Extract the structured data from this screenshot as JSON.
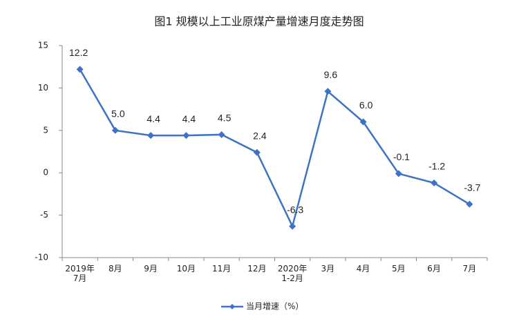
{
  "chart_data": {
    "type": "line",
    "title": "图1  规模以上工业原煤产量增速月度走势图",
    "categories": [
      "2019年\n7月",
      "8月",
      "9月",
      "10月",
      "11月",
      "12月",
      "2020年\n1-2月",
      "3月",
      "4月",
      "5月",
      "6月",
      "7月"
    ],
    "series": [
      {
        "name": "当月增速（%）",
        "color": "#3d72c4",
        "values": [
          12.2,
          5.0,
          4.4,
          4.4,
          4.5,
          2.4,
          -6.3,
          9.6,
          6.0,
          -0.1,
          -1.2,
          -3.7
        ],
        "value_labels": [
          "12.2",
          "5.0",
          "4.4",
          "4.4",
          "4.5",
          "2.4",
          "-6.3",
          "9.6",
          "6.0",
          "-0.1",
          "-1.2",
          "-3.7"
        ]
      }
    ],
    "ylim": [
      -10,
      15
    ],
    "yticks": [
      -10,
      -5,
      0,
      5,
      10,
      15
    ],
    "grid": false,
    "legend": "bottom"
  }
}
